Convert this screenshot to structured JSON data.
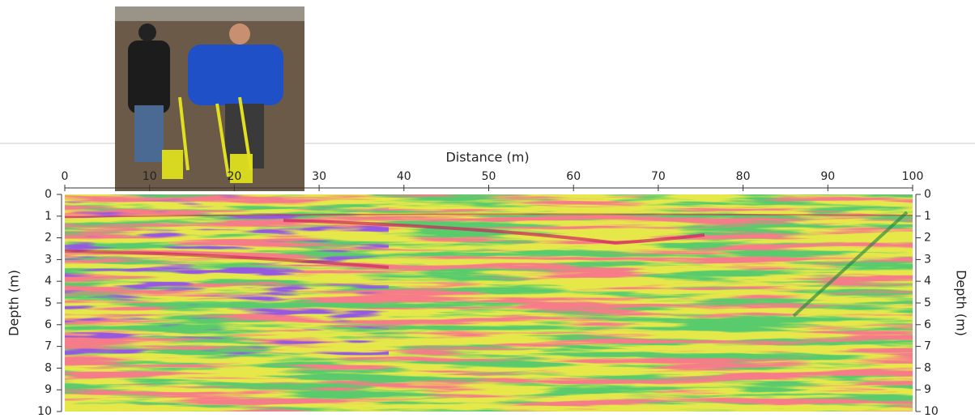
{
  "chart_data": {
    "type": "radargram",
    "xlabel": "Distance (m)",
    "ylabel": "Depth (m)",
    "xlim": [
      0,
      100
    ],
    "xticks": [
      0,
      10,
      20,
      30,
      40,
      50,
      60,
      70,
      80,
      90,
      100
    ],
    "ylim": [
      10,
      0
    ],
    "yticks": [
      0,
      1,
      2,
      3,
      4,
      5,
      6,
      7,
      8,
      9,
      10
    ]
  }
}
